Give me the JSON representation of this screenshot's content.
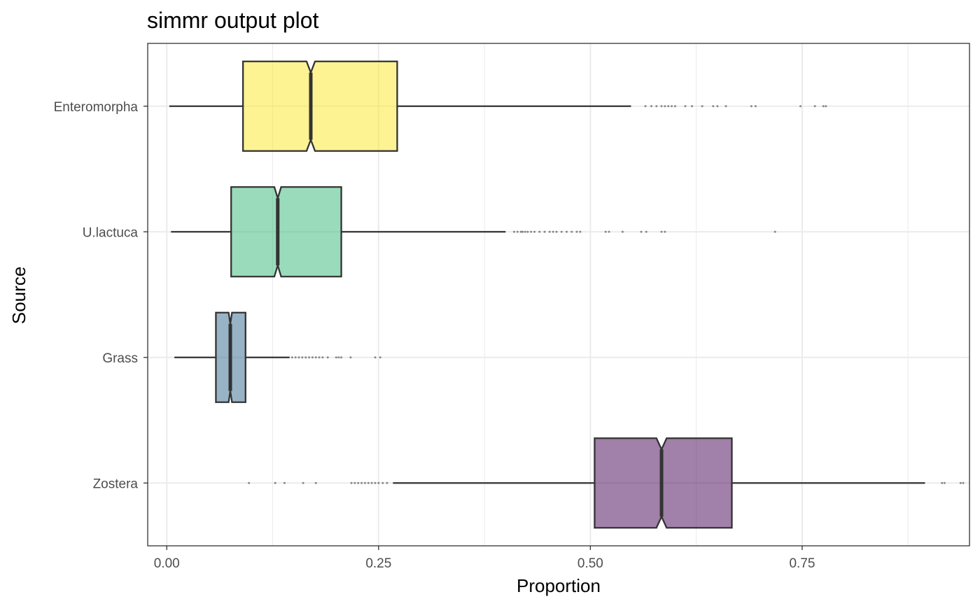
{
  "chart_data": {
    "type": "boxplot",
    "title": "simmr output plot",
    "xlabel": "Proportion",
    "ylabel": "Source",
    "xlim": [
      -0.0225,
      0.9475
    ],
    "x_ticks": [
      0.0,
      0.25,
      0.5,
      0.75
    ],
    "x_tick_labels": [
      "0.00",
      "0.25",
      "0.50",
      "0.75"
    ],
    "notched": true,
    "box_alpha": 0.5,
    "grid": true,
    "legend": "none",
    "series": [
      {
        "name": "Enteromorpha",
        "color": "#fde725",
        "whisker_low": 0.003,
        "q1": 0.09,
        "median": 0.17,
        "q3": 0.272,
        "whisker_high": 0.548,
        "notch_low": 0.165,
        "notch_high": 0.175,
        "outliers": [
          0.565,
          0.572,
          0.578,
          0.584,
          0.588,
          0.592,
          0.596,
          0.6,
          0.612,
          0.62,
          0.632,
          0.645,
          0.65,
          0.66,
          0.69,
          0.695,
          0.748,
          0.765,
          0.775,
          0.778
        ]
      },
      {
        "name": "U.lactuca",
        "color": "#35b779",
        "whisker_low": 0.005,
        "q1": 0.076,
        "median": 0.131,
        "q3": 0.206,
        "whisker_high": 0.4,
        "notch_low": 0.127,
        "notch_high": 0.135,
        "outliers": [
          0.41,
          0.414,
          0.418,
          0.42,
          0.423,
          0.426,
          0.43,
          0.434,
          0.44,
          0.446,
          0.452,
          0.456,
          0.46,
          0.466,
          0.472,
          0.478,
          0.484,
          0.488,
          0.518,
          0.522,
          0.538,
          0.56,
          0.566,
          0.584,
          0.588,
          0.718
        ]
      },
      {
        "name": "Grass",
        "color": "#31688e",
        "whisker_low": 0.009,
        "q1": 0.058,
        "median": 0.075,
        "q3": 0.093,
        "whisker_high": 0.145,
        "notch_low": 0.073,
        "notch_high": 0.077,
        "outliers": [
          0.148,
          0.152,
          0.156,
          0.16,
          0.164,
          0.168,
          0.172,
          0.176,
          0.18,
          0.184,
          0.19,
          0.2,
          0.203,
          0.206,
          0.217,
          0.246,
          0.252
        ]
      },
      {
        "name": "Zostera",
        "color": "#440154",
        "whisker_low": 0.267,
        "q1": 0.505,
        "median": 0.584,
        "q3": 0.667,
        "whisker_high": 0.895,
        "notch_low": 0.578,
        "notch_high": 0.59,
        "outliers": [
          0.097,
          0.128,
          0.139,
          0.161,
          0.176,
          0.218,
          0.222,
          0.226,
          0.23,
          0.234,
          0.238,
          0.242,
          0.246,
          0.25,
          0.255,
          0.26,
          0.915,
          0.918,
          0.937,
          0.94
        ]
      }
    ]
  }
}
